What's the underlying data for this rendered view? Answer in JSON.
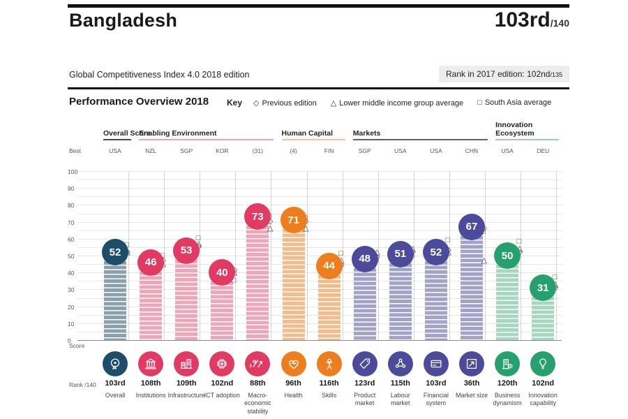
{
  "header": {
    "country": "Bangladesh",
    "rank": "103rd",
    "rank_total": "/140",
    "subtitle": "Global Competitiveness Index 4.0 2018 edition",
    "prev_rank": "Rank in 2017 edition: 102nd",
    "prev_rank_total": "/135"
  },
  "overview": {
    "title": "Performance Overview 2018",
    "key_label": "Key",
    "legend": [
      {
        "symbol": "◇",
        "label": "Previous edition"
      },
      {
        "symbol": "△",
        "label": "Lower middle income group average"
      },
      {
        "symbol": "□",
        "label": "South Asia average"
      }
    ]
  },
  "chart_data": {
    "type": "bar",
    "title": "Performance Overview 2018",
    "ylabel": "Score",
    "ylim": [
      0,
      100
    ],
    "grid": true,
    "yticks": [
      100,
      90,
      80,
      70,
      60,
      50,
      40,
      30,
      20,
      10,
      0
    ],
    "score_label": "Score",
    "best_label": "Best",
    "rank_label": "Rank /140",
    "legend_note": "diamond = previous edition, triangle = lower middle income group average, square = South Asia average",
    "groups": [
      {
        "label": "Overall Score",
        "circle_color": "#1e4d6b",
        "bar_color": "#8aa0b0",
        "underline_color": "#4a4a4a"
      },
      {
        "label": "Enabling Environment",
        "circle_color": "#e13b63",
        "bar_color": "#efa6b8",
        "underline_color": "#e7a8b6"
      },
      {
        "label": "Human Capital",
        "circle_color": "#ee7d1e",
        "bar_color": "#f4bc8a",
        "underline_color": "#ecc79c"
      },
      {
        "label": "Markets",
        "circle_color": "#4c4b9b",
        "bar_color": "#a2a2cc",
        "underline_color": "#5f5f70"
      },
      {
        "label": "Innovation Ecosystem",
        "circle_color": "#27a070",
        "bar_color": "#a5d7c1",
        "underline_color": "#a2c9bf"
      }
    ],
    "pillars": [
      {
        "name": "Overall",
        "value": 52,
        "rank": "103rd",
        "best": "USA",
        "group": 0,
        "icon": "gauge-icon",
        "markers": {
          "previous": 52,
          "income_avg": 52,
          "region_avg": 56
        }
      },
      {
        "name": "Institutions",
        "value": 46,
        "rank": "108th",
        "best": "NZL",
        "group": 1,
        "icon": "bank-icon",
        "markers": {
          "previous": 47,
          "income_avg": 45,
          "region_avg": 50
        }
      },
      {
        "name": "Infrastructure",
        "value": 53,
        "rank": "109th",
        "best": "SGP",
        "group": 1,
        "icon": "infrastructure-icon",
        "markers": {
          "previous": 55,
          "income_avg": 57,
          "region_avg": 60
        }
      },
      {
        "name": "ICT adoption",
        "value": 40,
        "rank": "102nd",
        "best": "KOR",
        "group": 1,
        "icon": "chip-icon",
        "markers": {
          "previous": 41,
          "income_avg": 40,
          "region_avg": 35
        }
      },
      {
        "name": "Macro-economic stability",
        "value": 73,
        "rank": "88th",
        "best": "(31)",
        "group": 1,
        "icon": "percent-growth-icon",
        "markers": {
          "previous": 70,
          "income_avg": 66,
          "region_avg": 73
        }
      },
      {
        "name": "Health",
        "value": 71,
        "rank": "96th",
        "best": "(4)",
        "group": 2,
        "icon": "heart-icon",
        "markers": {
          "previous": 70,
          "income_avg": 66,
          "region_avg": 72
        }
      },
      {
        "name": "Skills",
        "value": 44,
        "rank": "116th",
        "best": "FIN",
        "group": 2,
        "icon": "person-icon",
        "markers": {
          "previous": 44,
          "income_avg": 47,
          "region_avg": 51
        }
      },
      {
        "name": "Product market",
        "value": 48,
        "rank": "123rd",
        "best": "SGP",
        "group": 3,
        "icon": "price-tag-icon",
        "markers": {
          "previous": 49,
          "income_avg": 52,
          "region_avg": 47
        }
      },
      {
        "name": "Labour market",
        "value": 51,
        "rank": "115th",
        "best": "USA",
        "group": 3,
        "icon": "people-network-icon",
        "markers": {
          "previous": 52,
          "income_avg": 54,
          "region_avg": 50
        }
      },
      {
        "name": "Financial system",
        "value": 52,
        "rank": "103rd",
        "best": "USA",
        "group": 3,
        "icon": "credit-card-icon",
        "markers": {
          "previous": 53,
          "income_avg": 52,
          "region_avg": 59
        }
      },
      {
        "name": "Market size",
        "value": 67,
        "rank": "36th",
        "best": "CHN",
        "group": 3,
        "icon": "expand-chart-icon",
        "markers": {
          "previous": 66,
          "income_avg": 47,
          "region_avg": 64
        }
      },
      {
        "name": "Business dynamism",
        "value": 50,
        "rank": "120th",
        "best": "USA",
        "group": 4,
        "icon": "building-gear-icon",
        "markers": {
          "previous": 52,
          "income_avg": 54,
          "region_avg": 58
        }
      },
      {
        "name": "Innovation capability",
        "value": 31,
        "rank": "102nd",
        "best": "DEU",
        "group": 4,
        "icon": "lightbulb-icon",
        "markers": {
          "previous": 31,
          "income_avg": 33,
          "region_avg": 37
        }
      }
    ]
  }
}
